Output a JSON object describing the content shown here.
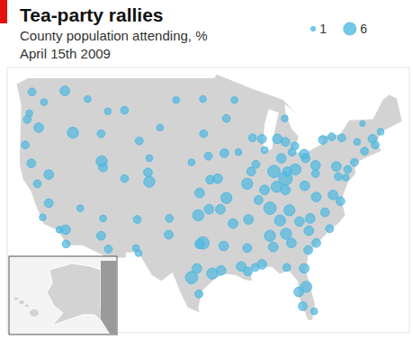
{
  "chart_data": {
    "type": "scatter",
    "title": "Tea-party rallies",
    "subtitle": [
      "County population attending, %",
      "April 15th 2009"
    ],
    "x": [
      -122.3,
      -117.4,
      -120.5,
      -123,
      -122.7,
      -121.3,
      -123.3,
      -121.5,
      -119.8,
      -117.2,
      -118.2,
      -117.3,
      -122.4,
      -120.7,
      -119.8,
      -115.1,
      -116.2,
      -112,
      -108.5,
      -111,
      -114,
      -111.9,
      -111.7,
      -112,
      -110.9,
      -111.7,
      -104.8,
      -105,
      -108.5,
      -106.6,
      -106.8,
      -104.8,
      -106.3,
      -96.8,
      -100.8,
      -96.7,
      -103.2,
      -96,
      -97.3,
      -95.7,
      -98.5,
      -97.5,
      -95.9,
      -96.8,
      -97.3,
      -95.4,
      -98.5,
      -97.7,
      -101.8,
      -101.9,
      -94.1,
      -97.4,
      -106.4,
      -93.3,
      -92.1,
      -89.4,
      -88,
      -93.6,
      -91.5,
      -90.2,
      -94.6,
      -93.3,
      -92.3,
      -94.2,
      -91.1,
      -90.1,
      -93.7,
      -90.2,
      -89,
      -87.6,
      -89.6,
      -86.2,
      -85.1,
      -87.6,
      -88.9,
      -83.1,
      -85.7,
      -84.5,
      -84.6,
      -84.5,
      -83,
      -81.7,
      -84.2,
      -81.5,
      -83.5,
      -85.8,
      -84.5,
      -86.8,
      -83.9,
      -85.3,
      -90,
      -88.5,
      -86.8,
      -86.3,
      -88,
      -84.4,
      -83.6,
      -81.1,
      -81.4,
      -82.5,
      -81.7,
      -80.2,
      -84.3,
      -81.9,
      -81,
      -82.4,
      -80.8,
      -78.6,
      -77.9,
      -79.9,
      -77.4,
      -76.3,
      -79.9,
      -81.6,
      -80,
      -80,
      -76.9,
      -75.2,
      -78.9,
      -76.1,
      -73.8,
      -74.2,
      -77.6,
      -71.1,
      -71.5,
      -70.3,
      -72.7,
      -73,
      -76.6,
      -75.5
    ],
    "values": [
      47.6,
      47.7,
      46.6,
      44.9,
      45.5,
      44.1,
      42.4,
      38.6,
      36.7,
      32.7,
      34.1,
      34.1,
      40.6,
      35.3,
      39.5,
      36.2,
      43.6,
      43.5,
      45.8,
      45.7,
      46.9,
      40.8,
      40.2,
      33.5,
      32.2,
      35.2,
      38.8,
      39.7,
      39.1,
      35.1,
      32.3,
      41.1,
      42.8,
      46.9,
      46.8,
      43.5,
      44.1,
      41.3,
      37.7,
      39,
      40.7,
      35.5,
      36.1,
      32.8,
      32.7,
      29.8,
      29.4,
      30.3,
      35.2,
      33.6,
      30.1,
      27.8,
      31.8,
      45,
      46.8,
      43.1,
      43,
      41.6,
      41.7,
      38.6,
      39.1,
      37.2,
      34.7,
      36.1,
      30.5,
      30,
      32.5,
      32.3,
      30.4,
      41.9,
      39.8,
      39.8,
      41.1,
      38,
      40.5,
      42.3,
      43,
      42.7,
      45,
      39.1,
      40,
      41.5,
      39.8,
      41.1,
      41.7,
      38.3,
      38,
      36.2,
      36,
      35,
      35.1,
      37,
      33.5,
      32.4,
      30.7,
      33.7,
      32.8,
      32.1,
      28.5,
      28,
      30.3,
      26.1,
      30.4,
      26.6,
      34,
      34.9,
      35.2,
      35.8,
      34.2,
      32.8,
      37.5,
      36.9,
      37.3,
      38.4,
      39.6,
      40.4,
      40.3,
      40,
      42.9,
      43.1,
      42.7,
      40.7,
      43.2,
      42.4,
      43,
      43.7,
      41.8,
      44.5,
      39.3,
      39.2
    ],
    "sizes": [
      2,
      3,
      1.5,
      2,
      1.5,
      3,
      2,
      2,
      2.5,
      2,
      1.5,
      3,
      2.5,
      1.5,
      3,
      1.5,
      4,
      2,
      2,
      1.5,
      1.5,
      4,
      2.5,
      2.5,
      2,
      1.5,
      4,
      2.5,
      2,
      2,
      1.5,
      1.5,
      2,
      1.5,
      1.5,
      2,
      1.5,
      2,
      3,
      2.5,
      1.5,
      4,
      3,
      5,
      3,
      4,
      5,
      3,
      2,
      2.5,
      3,
      2,
      1.5,
      2,
      1.5,
      2,
      2.5,
      2.5,
      1.5,
      4,
      3,
      4,
      3,
      3,
      3,
      2.5,
      3,
      2.5,
      2,
      1.5,
      2.5,
      5,
      3,
      3,
      2,
      2,
      3,
      2.5,
      1.5,
      6,
      4,
      3,
      3,
      2.5,
      2,
      4,
      3,
      5,
      4,
      4,
      3,
      2.5,
      4,
      3,
      3,
      4,
      3,
      2.5,
      4,
      3,
      3,
      1.5,
      2,
      2.5,
      3,
      3,
      3,
      2.5,
      2,
      2.5,
      3,
      2.5,
      3,
      3,
      2,
      3,
      3,
      2,
      2.5,
      2,
      1.5,
      2,
      2,
      2,
      2.5,
      1.5,
      2,
      1,
      2,
      1.5
    ],
    "size_legend": [
      1,
      6
    ],
    "color": "#4fb8e0",
    "xlim": [
      -126,
      -66
    ],
    "ylim": [
      24,
      50
    ],
    "xticks": [],
    "yticks": [],
    "tick_labels": false,
    "grid": false
  }
}
